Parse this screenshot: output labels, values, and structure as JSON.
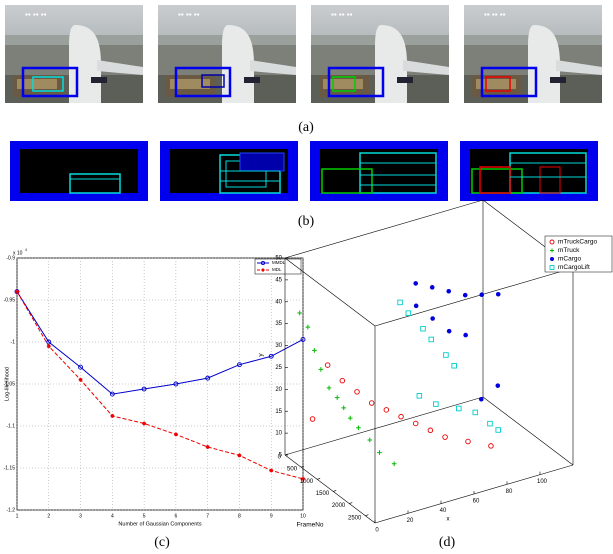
{
  "captions": [
    "(a)",
    "(b)",
    "(c)",
    "(d)"
  ],
  "chart_data": [
    {
      "type": "line",
      "y_label": "Log-likelihood",
      "x_label": "Number of Gaussian Components",
      "y_scale_base": "x 10",
      "y_scale_exp": "4",
      "x": [
        1,
        2,
        3,
        4,
        5,
        6,
        7,
        8,
        9,
        10
      ],
      "series": [
        {
          "name": "MMDL",
          "color": "#0000cc",
          "dash": false,
          "marker": "o",
          "values": [
            -0.94,
            -1.0,
            -1.03,
            -1.062,
            -1.056,
            -1.05,
            -1.043,
            -1.027,
            -1.017,
            -0.997
          ]
        },
        {
          "name": "MDL",
          "color": "#ee0000",
          "dash": true,
          "marker": "*",
          "values": [
            -0.94,
            -1.005,
            -1.045,
            -1.088,
            -1.097,
            -1.11,
            -1.125,
            -1.135,
            -1.153,
            -1.163
          ]
        }
      ],
      "xlim": [
        1,
        10
      ],
      "xticks": [
        1,
        2,
        3,
        4,
        5,
        6,
        7,
        8,
        9,
        10
      ],
      "ylim": [
        -1.2,
        -0.9
      ],
      "yticks": [
        -1.2,
        -1.15,
        -1.1,
        -1.05,
        -1,
        -0.95,
        -0.9
      ],
      "grid": true,
      "legend": "top-right"
    },
    {
      "type": "scatter3d",
      "x_label": "x",
      "y_label": "y",
      "frame_label": "FrameNo",
      "series": [
        {
          "name": "mTruckCargo",
          "color": "#ee0000",
          "marker": "o",
          "frame": [
            300,
            500,
            700,
            900,
            1100,
            1300,
            1500,
            1700,
            1900,
            2100,
            2300,
            600
          ],
          "x": [
            20,
            25,
            30,
            35,
            40,
            45,
            50,
            55,
            60,
            70,
            80,
            5
          ],
          "y": [
            25,
            22,
            20,
            18,
            17,
            16,
            15,
            14,
            13,
            12,
            11,
            16
          ]
        },
        {
          "name": "mTruck",
          "color": "#00bb00",
          "marker": "+",
          "frame": [
            200,
            300,
            400,
            500,
            600,
            700,
            800,
            900,
            1000,
            1200,
            1400,
            1600
          ],
          "x": [
            5,
            8,
            10,
            12,
            15,
            18,
            20,
            22,
            25,
            28,
            30,
            35
          ],
          "y": [
            38,
            35,
            30,
            26,
            22,
            20,
            18,
            16,
            14,
            12,
            10,
            8
          ]
        },
        {
          "name": "mCargo",
          "color": "#0000dd",
          "marker": ".",
          "frame": [
            1500,
            1500,
            1500,
            1500,
            1500,
            1500,
            1000,
            1000,
            1000,
            1000,
            2000,
            2000
          ],
          "x": [
            50,
            60,
            70,
            80,
            90,
            100,
            60,
            70,
            80,
            90,
            80,
            90
          ],
          "y": [
            47,
            45,
            43,
            41,
            40,
            39,
            38,
            34,
            30,
            28,
            20,
            22
          ]
        },
        {
          "name": "mCargoLift",
          "color": "#00cccc",
          "marker": "s",
          "frame": [
            500,
            500,
            700,
            700,
            900,
            900,
            1100,
            1100,
            1300,
            1300,
            1500,
            1500
          ],
          "x": [
            60,
            65,
            70,
            75,
            80,
            85,
            60,
            70,
            80,
            90,
            95,
            100
          ],
          "y": [
            36,
            33,
            30,
            27,
            24,
            21,
            18,
            15,
            14,
            12,
            10,
            8
          ]
        }
      ],
      "xlim": [
        0,
        120
      ],
      "xticks": [
        0,
        20,
        40,
        60,
        80,
        100
      ],
      "ylim": [
        5,
        50
      ],
      "yticks": [
        5,
        10,
        15,
        20,
        25,
        30,
        35,
        40,
        45,
        50
      ],
      "framelim": [
        0,
        2800
      ],
      "frameticks": [
        0,
        500,
        1000,
        1500,
        2000,
        2500
      ],
      "legend": "top-right"
    }
  ]
}
